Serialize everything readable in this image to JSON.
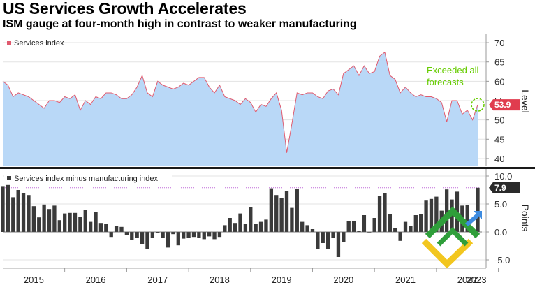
{
  "header": {
    "title": "US Services Growth Accelerates",
    "subtitle": "ISM gauge at four-month high in contrast to weaker manufacturing"
  },
  "colors": {
    "services_line": "#e05a6e",
    "services_fill": "#b9d8f7",
    "bars": "#3a3a3a",
    "annotation": "#66cc00",
    "reference_line": "#c06bd8",
    "logo_green": "#2f9e3a",
    "logo_yellow": "#f2c61f",
    "logo_blue": "#3d8be0"
  },
  "chart_data": [
    {
      "type": "area",
      "legend": "Services index",
      "ylabel": "Level",
      "ylim": [
        38,
        72
      ],
      "yticks": [
        "40",
        "45",
        "50",
        "55",
        "60",
        "65",
        "70"
      ],
      "last_value_label": "53.9",
      "annotation": "Exceeded all forecasts",
      "x_start": 2015.0,
      "x_step_months": 1,
      "series": [
        {
          "name": "Services index",
          "values": [
            60.0,
            59.0,
            56.0,
            57.0,
            56.5,
            56.0,
            55.0,
            54.0,
            53.0,
            55.0,
            55.0,
            54.5,
            56.0,
            55.5,
            56.5,
            52.5,
            55.0,
            54.0,
            56.0,
            55.5,
            57.0,
            57.0,
            56.5,
            55.5,
            55.5,
            56.5,
            58.5,
            61.5,
            57.0,
            56.0,
            60.0,
            59.0,
            58.5,
            58.0,
            58.5,
            59.5,
            59.0,
            60.0,
            61.0,
            61.0,
            58.5,
            57.0,
            59.0,
            56.0,
            55.5,
            55.0,
            54.0,
            55.5,
            54.5,
            52.0,
            54.0,
            53.5,
            55.5,
            57.0,
            52.5,
            41.5,
            49.0,
            57.0,
            56.5,
            57.0,
            57.0,
            56.0,
            55.5,
            57.5,
            58.0,
            56.5,
            62.0,
            63.0,
            64.0,
            61.5,
            64.0,
            62.0,
            62.5,
            66.5,
            67.5,
            61.5,
            60.5,
            57.0,
            58.5,
            57.0,
            56.0,
            56.5,
            56.0,
            56.0,
            55.5,
            54.5,
            49.5,
            55.0,
            55.0,
            51.5,
            52.5,
            50.0,
            53.9
          ]
        }
      ]
    },
    {
      "type": "bar",
      "legend": "Services index minus manufacturing index",
      "ylabel": "Points",
      "ylim": [
        -6.5,
        11
      ],
      "yticks": [
        "10.0",
        "5.0",
        "0.0",
        "-5.0"
      ],
      "last_value_label": "7.9",
      "reference_value": 7.9,
      "x_start": 2015.0,
      "x_step_months": 1,
      "series": [
        {
          "name": "Services index minus manufacturing index",
          "values": [
            8.2,
            8.4,
            6.2,
            7.5,
            7.0,
            6.6,
            4.6,
            2.6,
            4.9,
            4.1,
            4.7,
            2.1,
            3.3,
            3.4,
            3.4,
            2.7,
            4.0,
            1.8,
            3.5,
            1.6,
            1.5,
            -0.9,
            1.0,
            0.9,
            -0.5,
            -1.5,
            -1.0,
            -2.2,
            -3.0,
            -1.1,
            -0.2,
            -1.0,
            -2.8,
            -0.4,
            -2.4,
            -1.2,
            -1.0,
            -0.9,
            -1.1,
            -1.3,
            -0.8,
            -1.3,
            -0.9,
            1.2,
            2.5,
            1.6,
            3.3,
            1.4,
            4.5,
            1.5,
            1.8,
            2.2,
            7.8,
            6.6,
            6.0,
            7.3,
            4.3,
            7.7,
            1.8,
            1.2,
            0.5,
            -3.0,
            -2.0,
            -3.0,
            -1.0,
            -4.5,
            -1.8,
            2.0,
            2.0,
            0.2,
            3.0,
            -0.1,
            2.5,
            6.5,
            7.0,
            3.2,
            0.7,
            -1.6,
            1.8,
            1.0,
            3.0,
            3.2,
            5.6,
            5.9,
            6.3,
            3.8,
            7.6,
            5.8,
            7.2,
            4.7,
            4.8,
            0.4,
            7.9
          ]
        }
      ]
    }
  ],
  "x_axis": {
    "ticks": [
      "2015",
      "2016",
      "2017",
      "2018",
      "2019",
      "2020",
      "2021",
      "2022",
      "2023"
    ]
  }
}
